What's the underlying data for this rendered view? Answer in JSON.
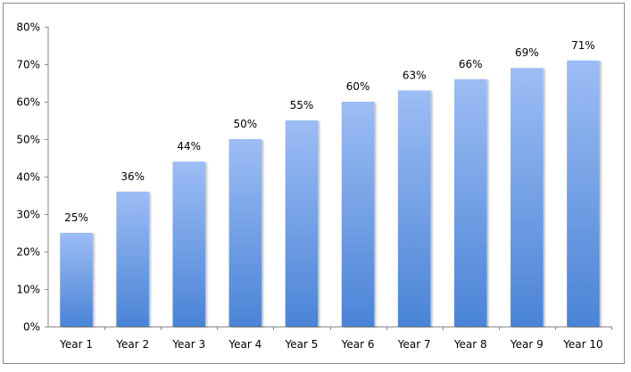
{
  "chart_data": {
    "type": "bar",
    "categories": [
      "Year 1",
      "Year 2",
      "Year 3",
      "Year 4",
      "Year 5",
      "Year 6",
      "Year 7",
      "Year 8",
      "Year 9",
      "Year 10"
    ],
    "values": [
      25,
      36,
      44,
      50,
      55,
      60,
      63,
      66,
      69,
      71
    ],
    "data_labels": [
      "25%",
      "36%",
      "44%",
      "50%",
      "55%",
      "60%",
      "63%",
      "66%",
      "69%",
      "71%"
    ],
    "title": "",
    "xlabel": "",
    "ylabel": "",
    "ylim": [
      0,
      80
    ],
    "y_ticks": [
      0,
      10,
      20,
      30,
      40,
      50,
      60,
      70,
      80
    ],
    "y_tick_labels": [
      "0%",
      "10%",
      "20%",
      "30%",
      "40%",
      "50%",
      "60%",
      "70%",
      "80%"
    ],
    "grid": false,
    "legend": "none",
    "colors": {
      "bar_top": "#9dbdf5",
      "bar_bottom": "#4a84d6",
      "axis": "#8a8a8a",
      "frame": "#8a8a8a"
    }
  }
}
